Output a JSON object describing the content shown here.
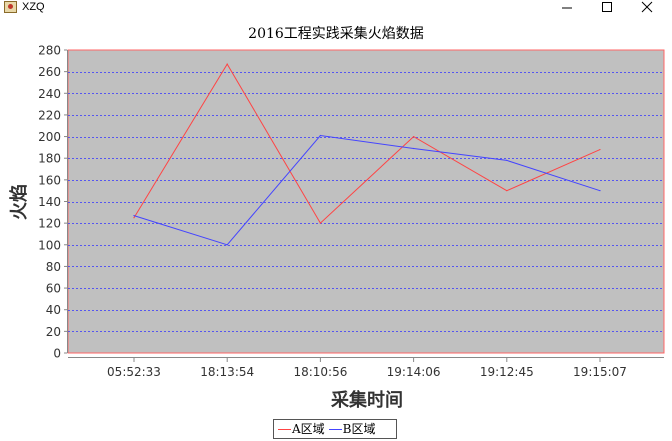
{
  "window": {
    "title": "XZQ",
    "controls": [
      "minimize",
      "maximize",
      "close"
    ]
  },
  "colors": {
    "plot_bg": "#c0c0c0",
    "plot_border": "#ff6666",
    "grid": "#3333ff",
    "series_a": "#ff4444",
    "series_b": "#4444ff"
  },
  "chart_data": {
    "type": "line",
    "title": "2016工程实践采集火焰数据",
    "xlabel": "采集时间",
    "ylabel": "火焰",
    "categories": [
      "05:52:33",
      "18:13:54",
      "18:10:56",
      "19:14:06",
      "19:12:45",
      "19:15:07"
    ],
    "ylim": [
      0,
      280
    ],
    "yticks": [
      0,
      20,
      40,
      60,
      80,
      100,
      120,
      140,
      160,
      180,
      200,
      220,
      240,
      260,
      280
    ],
    "grid": true,
    "legend_position": "bottom",
    "series": [
      {
        "name": "A区域",
        "values": [
          125,
          267,
          120,
          200,
          150,
          188
        ]
      },
      {
        "name": "B区域",
        "values": [
          127,
          100,
          201,
          189,
          178,
          150
        ]
      }
    ]
  }
}
